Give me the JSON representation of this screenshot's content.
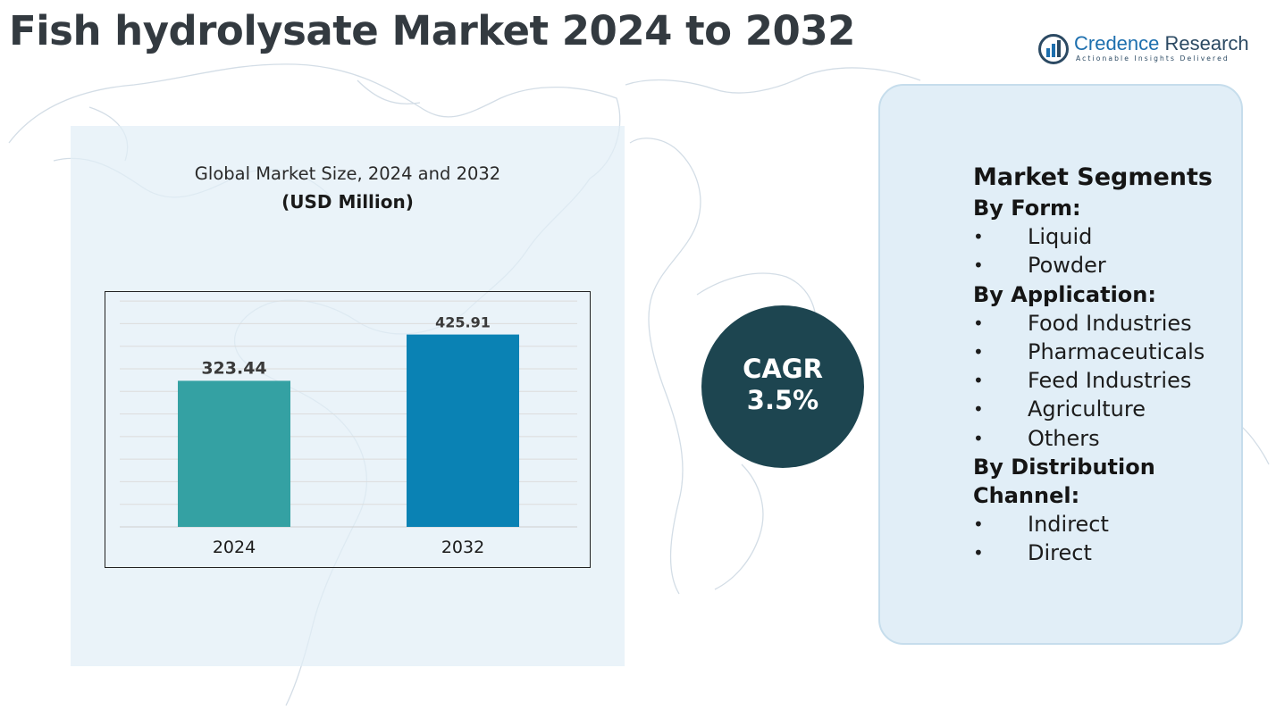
{
  "title": "Fish hydrolysate Market 2024 to 2032",
  "logo": {
    "name_part1": "Credence",
    "name_part2": "Research",
    "tagline": "Actionable Insights Delivered"
  },
  "chart_data": {
    "type": "bar",
    "title": "Global Market Size, 2024 and 2032",
    "unit_label": "(USD Million)",
    "categories": [
      "2024",
      "2032"
    ],
    "values": [
      323.44,
      425.91
    ],
    "value_labels": [
      "323.44",
      "425.91"
    ],
    "bar_colors": [
      "#34a1a3",
      "#0a82b4"
    ],
    "grid": true,
    "ylim": [
      0,
      520
    ]
  },
  "cagr": {
    "label": "CAGR",
    "value": "3.5%",
    "circle_color": "#1d4550"
  },
  "segments": {
    "heading": "Market Segments",
    "groups": [
      {
        "label": "By Form:",
        "items": [
          "Liquid",
          "Powder"
        ]
      },
      {
        "label": "By Application:",
        "items": [
          "Food Industries",
          "Pharmaceuticals",
          "Feed Industries",
          "Agriculture",
          "Others"
        ]
      },
      {
        "label": "By Distribution Channel:",
        "items": [
          "Indirect",
          "Direct"
        ]
      }
    ],
    "bullet": "•"
  },
  "colors": {
    "title": "#333a40",
    "panel_bg": "#e2eef6",
    "segment_panel_bg": "#e1eef7",
    "brand_blue": "#1d6fae"
  }
}
